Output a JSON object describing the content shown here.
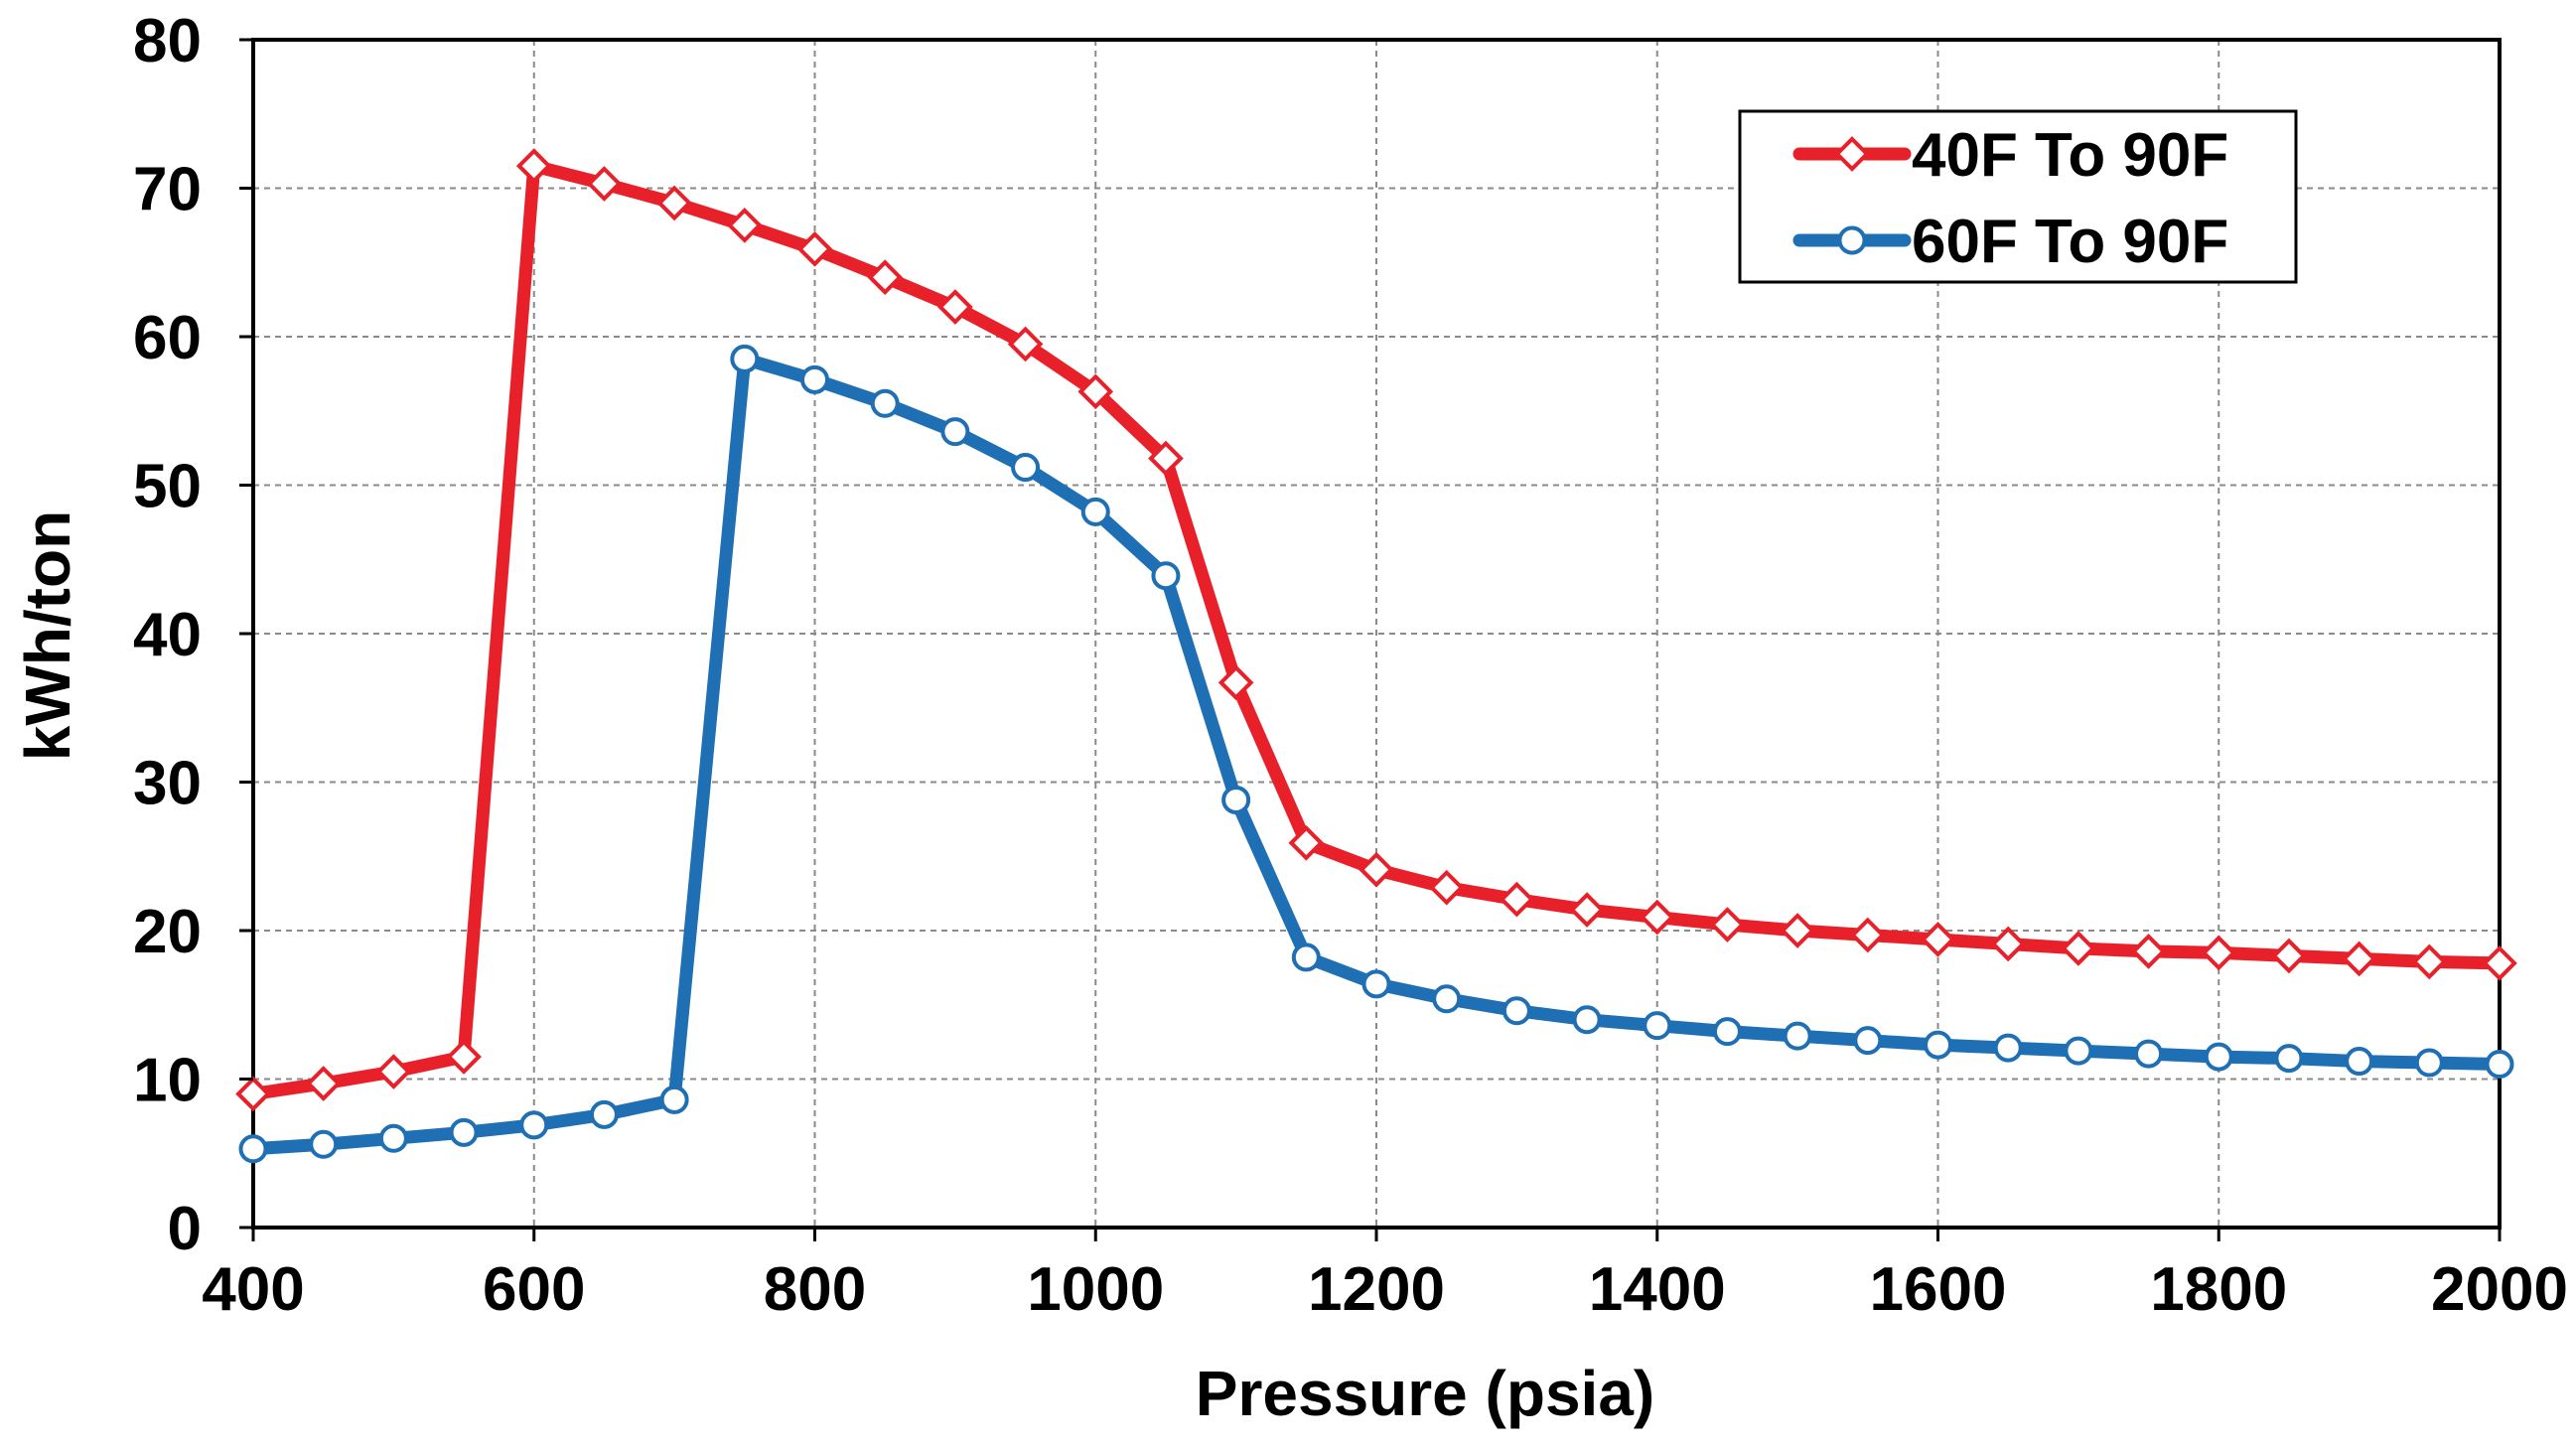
{
  "chart_data": {
    "type": "line",
    "title": "",
    "xlabel": "Pressure (psia)",
    "ylabel": "kWh/ton",
    "xlim": [
      400,
      2000
    ],
    "ylim": [
      0,
      80
    ],
    "xticks": [
      400,
      600,
      800,
      1000,
      1200,
      1400,
      1600,
      1800,
      2000
    ],
    "yticks": [
      0,
      10,
      20,
      30,
      40,
      50,
      60,
      70,
      80
    ],
    "grid": true,
    "legend_position": "top-right",
    "series": [
      {
        "name": "40F To 90F",
        "color": "#e8202a",
        "marker": "diamond",
        "x": [
          400,
          450,
          500,
          550,
          600,
          650,
          700,
          750,
          800,
          850,
          900,
          950,
          1000,
          1050,
          1100,
          1150,
          1200,
          1250,
          1300,
          1350,
          1400,
          1450,
          1500,
          1550,
          1600,
          1650,
          1700,
          1750,
          1800,
          1850,
          1900,
          1950,
          2000
        ],
        "values": [
          9.0,
          9.7,
          10.5,
          11.5,
          71.5,
          70.3,
          69.0,
          67.5,
          65.9,
          64.0,
          62.0,
          59.5,
          56.3,
          51.8,
          36.7,
          25.9,
          24.1,
          22.9,
          22.1,
          21.4,
          20.9,
          20.4,
          20.0,
          19.7,
          19.4,
          19.1,
          18.8,
          18.6,
          18.5,
          18.3,
          18.1,
          17.9,
          17.8
        ]
      },
      {
        "name": "60F To 90F",
        "color": "#1f6fb4",
        "marker": "circle",
        "x": [
          400,
          450,
          500,
          550,
          600,
          650,
          700,
          750,
          800,
          850,
          900,
          950,
          1000,
          1050,
          1100,
          1150,
          1200,
          1250,
          1300,
          1350,
          1400,
          1450,
          1500,
          1550,
          1600,
          1650,
          1700,
          1750,
          1800,
          1850,
          1900,
          1950,
          2000
        ],
        "values": [
          5.3,
          5.6,
          6.0,
          6.4,
          6.9,
          7.6,
          8.6,
          58.5,
          57.1,
          55.5,
          53.6,
          51.2,
          48.2,
          43.9,
          28.8,
          18.2,
          16.4,
          15.4,
          14.6,
          14.0,
          13.6,
          13.2,
          12.9,
          12.6,
          12.3,
          12.1,
          11.9,
          11.7,
          11.5,
          11.4,
          11.2,
          11.1,
          11.0
        ]
      }
    ]
  }
}
